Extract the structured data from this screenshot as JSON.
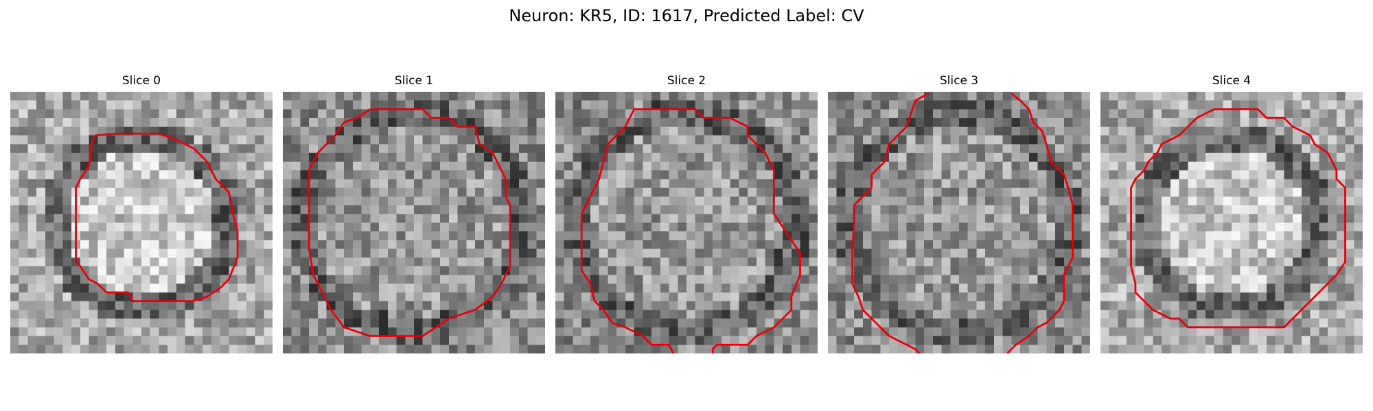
{
  "figure": {
    "title": "Neuron: KR5, ID: 1617, Predicted Label: CV"
  },
  "contour_color": "#e8000b",
  "panels": [
    {
      "title": "Slice 0",
      "seed": 11,
      "style": "ring-bright-interior"
    },
    {
      "title": "Slice 1",
      "seed": 23,
      "style": "diffuse-interior"
    },
    {
      "title": "Slice 2",
      "seed": 37,
      "style": "diffuse-interior"
    },
    {
      "title": "Slice 3",
      "seed": 53,
      "style": "diffuse-interior"
    },
    {
      "title": "Slice 4",
      "seed": 71,
      "style": "ring-bright-interior"
    }
  ]
}
